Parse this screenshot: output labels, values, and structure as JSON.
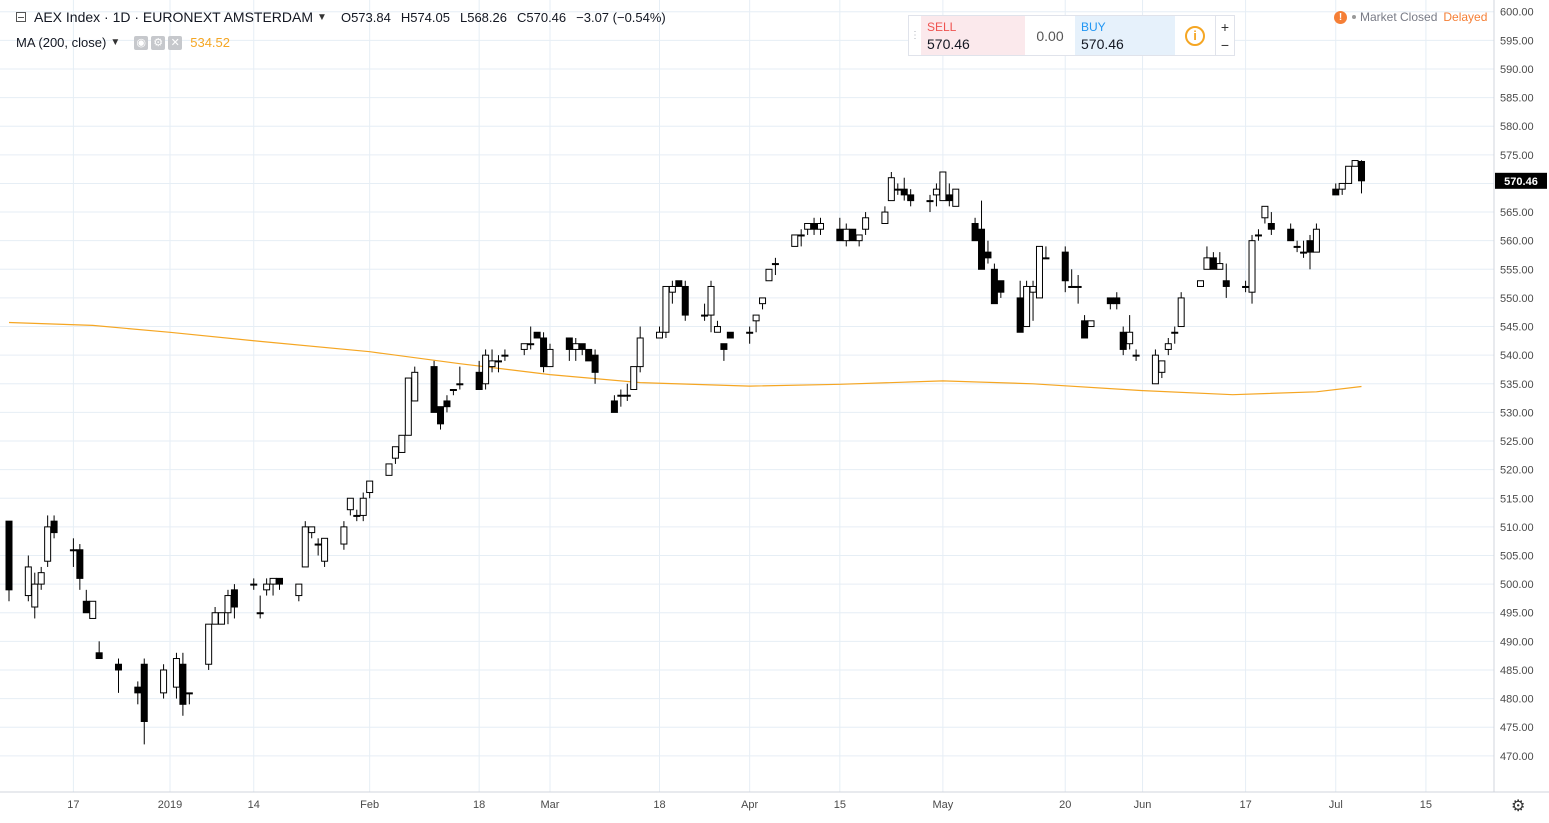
{
  "legend": {
    "symbol": "AEX Index · 1D · EURONEXT AMSTERDAM",
    "o_label": "O",
    "o": "573.84",
    "h_label": "H",
    "h": "574.05",
    "l_label": "L",
    "l": "568.26",
    "c_label": "C",
    "c": "570.46",
    "change": "−3.07 (−0.54%)",
    "ma_label": "MA (200, close)",
    "ma_value": "534.52"
  },
  "trade": {
    "sell_label": "SELL",
    "sell_value": "570.46",
    "spread": "0.00",
    "buy_label": "BUY",
    "buy_value": "570.46",
    "info_glyph": "i",
    "plus": "+",
    "minus": "−"
  },
  "status": {
    "warning_glyph": "!",
    "market": "Market Closed",
    "delayed": "Delayed"
  },
  "icons": [
    "collapse-icon",
    "chevron-down-icon",
    "eye-icon",
    "gear-icon",
    "close-icon",
    "info-icon",
    "warning-icon",
    "settings-gear-icon"
  ],
  "colors": {
    "up_fill": "#ffffff",
    "down_fill": "#000000",
    "ma_line": "#f5a623",
    "price_label_bg": "#000000",
    "grid": "#e6eef5"
  },
  "chart_data": {
    "type": "candlestick",
    "title": "AEX Index · 1D · EURONEXT AMSTERDAM",
    "ylim": [
      467,
      601
    ],
    "y_ticks": [
      470,
      475,
      480,
      485,
      490,
      495,
      500,
      505,
      510,
      515,
      520,
      525,
      530,
      535,
      540,
      545,
      550,
      555,
      560,
      565,
      570,
      575,
      580,
      585,
      590,
      595,
      600
    ],
    "y_tick_labels": [
      "470.00",
      "475.00",
      "480.00",
      "485.00",
      "490.00",
      "495.00",
      "500.00",
      "505.00",
      "510.00",
      "515.00",
      "520.00",
      "525.00",
      "530.00",
      "535.00",
      "540.00",
      "545.00",
      "550.00",
      "555.00",
      "560.00",
      "565.00",
      "570.00",
      "575.00",
      "580.00",
      "585.00",
      "590.00",
      "595.00",
      "600.00"
    ],
    "x_tick_labels": [
      "17",
      "2019",
      "14",
      "Feb",
      "18",
      "Mar",
      "18",
      "Apr",
      "15",
      "May",
      "20",
      "Jun",
      "17",
      "Jul",
      "15"
    ],
    "x_tick_dates": [
      "2018-12-17",
      "2019-01-01",
      "2019-01-14",
      "2019-02-01",
      "2019-02-18",
      "2019-03-01",
      "2019-03-18",
      "2019-04-01",
      "2019-04-15",
      "2019-05-01",
      "2019-05-20",
      "2019-06-01",
      "2019-06-17",
      "2019-07-01",
      "2019-07-15"
    ],
    "x_range": [
      "2018-12-07",
      "2019-07-22"
    ],
    "last_price": 570.46,
    "last_price_label": "570.46",
    "candles": [
      [
        "2018-12-07",
        511,
        511,
        497,
        499
      ],
      [
        "2018-12-10",
        498,
        505,
        497,
        503
      ],
      [
        "2018-12-11",
        496,
        502,
        494,
        500
      ],
      [
        "2018-12-12",
        500,
        503,
        499,
        502
      ],
      [
        "2018-12-13",
        504,
        512,
        503,
        510
      ],
      [
        "2018-12-14",
        511,
        512,
        508,
        509
      ],
      [
        "2018-12-17",
        506,
        508,
        503,
        506
      ],
      [
        "2018-12-18",
        506,
        507,
        499,
        501
      ],
      [
        "2018-12-19",
        497,
        499,
        495,
        495
      ],
      [
        "2018-12-20",
        494,
        497,
        494,
        497
      ],
      [
        "2018-12-21",
        488,
        490,
        487,
        487
      ],
      [
        "2018-12-24",
        486,
        487,
        481,
        485
      ],
      [
        "2018-12-27",
        482,
        483,
        479,
        481
      ],
      [
        "2018-12-28",
        486,
        487,
        472,
        476
      ],
      [
        "2018-12-31",
        481,
        486,
        480,
        485
      ],
      [
        "2019-01-02",
        482,
        488,
        480,
        487
      ],
      [
        "2019-01-03",
        486,
        488,
        477,
        479
      ],
      [
        "2019-01-04",
        481,
        481,
        479,
        481
      ],
      [
        "2019-01-07",
        486,
        493,
        485,
        493
      ],
      [
        "2019-01-08",
        493,
        496,
        493,
        495
      ],
      [
        "2019-01-09",
        493,
        495,
        493,
        495
      ],
      [
        "2019-01-10",
        495,
        499,
        493,
        498
      ],
      [
        "2019-01-11",
        499,
        500,
        494,
        496
      ],
      [
        "2019-01-14",
        500,
        501,
        499,
        500
      ],
      [
        "2019-01-15",
        495,
        498,
        494,
        495
      ],
      [
        "2019-01-16",
        499,
        501,
        498,
        500
      ],
      [
        "2019-01-17",
        500,
        501,
        498,
        501
      ],
      [
        "2019-01-18",
        501,
        501,
        499,
        500
      ],
      [
        "2019-01-21",
        498,
        500,
        497,
        500
      ],
      [
        "2019-01-22",
        503,
        511,
        503,
        510
      ],
      [
        "2019-01-23",
        509,
        510,
        508,
        510
      ],
      [
        "2019-01-24",
        507,
        508,
        505,
        507
      ],
      [
        "2019-01-25",
        504,
        508,
        503,
        508
      ],
      [
        "2019-01-28",
        507,
        511,
        506,
        510
      ],
      [
        "2019-01-29",
        513,
        515,
        512,
        515
      ],
      [
        "2019-01-30",
        512,
        513,
        511,
        512
      ],
      [
        "2019-01-31",
        512,
        516,
        511,
        515
      ],
      [
        "2019-02-01",
        516,
        518,
        515,
        518
      ],
      [
        "2019-02-04",
        519,
        521,
        519,
        521
      ],
      [
        "2019-02-05",
        522,
        524,
        521,
        524
      ],
      [
        "2019-02-06",
        523,
        526,
        523,
        526
      ],
      [
        "2019-02-07",
        526,
        536,
        526,
        536
      ],
      [
        "2019-02-08",
        532,
        538,
        532,
        537
      ],
      [
        "2019-02-11",
        538,
        539,
        530,
        530
      ],
      [
        "2019-02-12",
        531,
        531,
        527,
        528
      ],
      [
        "2019-02-13",
        532,
        533,
        530,
        531
      ],
      [
        "2019-02-14",
        534,
        534,
        533,
        534
      ],
      [
        "2019-02-15",
        535,
        538,
        534,
        535
      ],
      [
        "2019-02-18",
        537,
        539,
        534,
        534
      ],
      [
        "2019-02-19",
        535,
        541,
        534,
        540
      ],
      [
        "2019-02-20",
        538,
        541,
        537,
        539
      ],
      [
        "2019-02-21",
        539,
        540,
        537,
        539
      ],
      [
        "2019-02-22",
        540,
        541,
        539,
        540
      ],
      [
        "2019-02-25",
        541,
        542,
        540,
        542
      ],
      [
        "2019-02-26",
        542,
        545,
        541,
        542
      ],
      [
        "2019-02-27",
        544,
        544,
        543,
        543
      ],
      [
        "2019-02-28",
        543,
        544,
        537,
        538
      ],
      [
        "2019-03-01",
        538,
        542,
        538,
        541
      ],
      [
        "2019-03-04",
        543,
        543,
        539,
        541
      ],
      [
        "2019-03-05",
        541,
        543,
        539,
        542
      ],
      [
        "2019-03-06",
        542,
        542,
        540,
        541
      ],
      [
        "2019-03-07",
        541,
        541,
        539,
        539
      ],
      [
        "2019-03-08",
        540,
        541,
        535,
        537
      ],
      [
        "2019-03-11",
        532,
        533,
        530,
        530
      ],
      [
        "2019-03-12",
        533,
        534,
        531,
        533
      ],
      [
        "2019-03-13",
        533,
        535,
        532,
        533
      ],
      [
        "2019-03-14",
        534,
        538,
        534,
        538
      ],
      [
        "2019-03-15",
        538,
        545,
        537,
        543
      ],
      [
        "2019-03-18",
        543,
        545,
        543,
        544
      ],
      [
        "2019-03-19",
        544,
        552,
        543,
        552
      ],
      [
        "2019-03-20",
        551,
        553,
        549,
        552
      ],
      [
        "2019-03-21",
        553,
        553,
        552,
        552
      ],
      [
        "2019-03-22",
        552,
        553,
        546,
        547
      ],
      [
        "2019-03-25",
        547,
        549,
        546,
        547
      ],
      [
        "2019-03-26",
        547,
        553,
        544,
        552
      ],
      [
        "2019-03-27",
        544,
        546,
        544,
        545
      ],
      [
        "2019-03-28",
        542,
        542,
        539,
        541
      ],
      [
        "2019-03-29",
        544,
        544,
        543,
        543
      ],
      [
        "2019-04-01",
        544,
        545,
        542,
        544
      ],
      [
        "2019-04-02",
        546,
        547,
        544,
        547
      ],
      [
        "2019-04-03",
        549,
        550,
        548,
        550
      ],
      [
        "2019-04-04",
        553,
        555,
        553,
        555
      ],
      [
        "2019-04-05",
        556,
        557,
        554,
        556
      ],
      [
        "2019-04-08",
        559,
        561,
        559,
        561
      ],
      [
        "2019-04-09",
        561,
        562,
        559,
        561
      ],
      [
        "2019-04-10",
        562,
        563,
        561,
        563
      ],
      [
        "2019-04-11",
        563,
        564,
        561,
        562
      ],
      [
        "2019-04-12",
        562,
        564,
        561,
        563
      ],
      [
        "2019-04-15",
        562,
        564,
        560,
        560
      ],
      [
        "2019-04-16",
        560,
        563,
        559,
        562
      ],
      [
        "2019-04-17",
        562,
        562,
        560,
        560
      ],
      [
        "2019-04-18",
        560,
        561,
        559,
        561
      ],
      [
        "2019-04-19",
        562,
        565,
        561,
        564
      ],
      [
        "2019-04-22",
        563,
        566,
        563,
        565
      ],
      [
        "2019-04-23",
        567,
        572,
        567,
        571
      ],
      [
        "2019-04-24",
        569,
        570,
        568,
        569
      ],
      [
        "2019-04-25",
        569,
        571,
        567,
        568
      ],
      [
        "2019-04-26",
        568,
        569,
        566,
        567
      ],
      [
        "2019-04-29",
        567,
        568,
        565,
        567
      ],
      [
        "2019-04-30",
        568,
        570,
        566,
        569
      ],
      [
        "2019-05-01",
        567,
        572,
        567,
        572
      ],
      [
        "2019-05-02",
        568,
        570,
        566,
        567
      ],
      [
        "2019-05-03",
        566,
        569,
        566,
        569
      ],
      [
        "2019-05-06",
        563,
        564,
        560,
        560
      ],
      [
        "2019-05-07",
        562,
        567,
        555,
        555
      ],
      [
        "2019-05-08",
        558,
        560,
        556,
        557
      ],
      [
        "2019-05-09",
        555,
        556,
        549,
        549
      ],
      [
        "2019-05-10",
        553,
        553,
        550,
        551
      ],
      [
        "2019-05-13",
        550,
        553,
        544,
        544
      ],
      [
        "2019-05-14",
        545,
        553,
        545,
        552
      ],
      [
        "2019-05-15",
        551,
        553,
        546,
        552
      ],
      [
        "2019-05-16",
        550,
        559,
        550,
        559
      ],
      [
        "2019-05-17",
        557,
        559,
        557,
        557
      ],
      [
        "2019-05-20",
        558,
        559,
        551,
        553
      ],
      [
        "2019-05-21",
        552,
        555,
        552,
        552
      ],
      [
        "2019-05-22",
        552,
        554,
        549,
        552
      ],
      [
        "2019-05-23",
        546,
        547,
        543,
        543
      ],
      [
        "2019-05-24",
        545,
        546,
        545,
        546
      ],
      [
        "2019-05-27",
        550,
        550,
        548,
        549
      ],
      [
        "2019-05-28",
        550,
        551,
        548,
        549
      ],
      [
        "2019-05-29",
        544,
        545,
        540,
        541
      ],
      [
        "2019-05-30",
        542,
        547,
        541,
        544
      ],
      [
        "2019-05-31",
        540,
        541,
        539,
        540
      ],
      [
        "2019-06-03",
        535,
        541,
        535,
        540
      ],
      [
        "2019-06-04",
        537,
        539,
        536,
        539
      ],
      [
        "2019-06-05",
        541,
        543,
        540,
        542
      ],
      [
        "2019-06-06",
        544,
        545,
        542,
        544
      ],
      [
        "2019-06-07",
        545,
        551,
        545,
        550
      ],
      [
        "2019-06-10",
        552,
        553,
        552,
        553
      ],
      [
        "2019-06-11",
        555,
        559,
        555,
        557
      ],
      [
        "2019-06-12",
        557,
        558,
        555,
        555
      ],
      [
        "2019-06-13",
        555,
        558,
        555,
        556
      ],
      [
        "2019-06-14",
        553,
        556,
        550,
        552
      ],
      [
        "2019-06-17",
        552,
        553,
        551,
        552
      ],
      [
        "2019-06-18",
        551,
        561,
        549,
        560
      ],
      [
        "2019-06-19",
        561,
        562,
        560,
        561
      ],
      [
        "2019-06-20",
        564,
        566,
        563,
        566
      ],
      [
        "2019-06-21",
        563,
        565,
        561,
        562
      ],
      [
        "2019-06-24",
        562,
        563,
        560,
        560
      ],
      [
        "2019-06-25",
        559,
        560,
        558,
        559
      ],
      [
        "2019-06-26",
        558,
        560,
        557,
        558
      ],
      [
        "2019-06-27",
        560,
        561,
        555,
        558
      ],
      [
        "2019-06-28",
        558,
        563,
        558,
        562
      ],
      [
        "2019-07-01",
        569,
        570,
        568,
        568
      ],
      [
        "2019-07-02",
        569,
        570,
        568,
        570
      ],
      [
        "2019-07-03",
        570,
        573,
        570,
        573
      ],
      [
        "2019-07-04",
        573,
        574,
        573,
        574
      ],
      [
        "2019-07-05",
        573.84,
        574.05,
        568.26,
        570.46
      ]
    ],
    "ma_series": {
      "name": "MA (200, close)",
      "points": [
        [
          "2018-12-07",
          545.7
        ],
        [
          "2018-12-20",
          545.2
        ],
        [
          "2019-01-01",
          544.0
        ],
        [
          "2019-01-15",
          542.4
        ],
        [
          "2019-02-01",
          540.6
        ],
        [
          "2019-02-15",
          538.5
        ],
        [
          "2019-03-01",
          536.6
        ],
        [
          "2019-03-15",
          535.2
        ],
        [
          "2019-04-01",
          534.6
        ],
        [
          "2019-04-15",
          534.9
        ],
        [
          "2019-05-01",
          535.5
        ],
        [
          "2019-05-15",
          535.0
        ],
        [
          "2019-06-01",
          533.8
        ],
        [
          "2019-06-15",
          533.1
        ],
        [
          "2019-06-28",
          533.6
        ],
        [
          "2019-07-05",
          534.52
        ]
      ]
    }
  }
}
